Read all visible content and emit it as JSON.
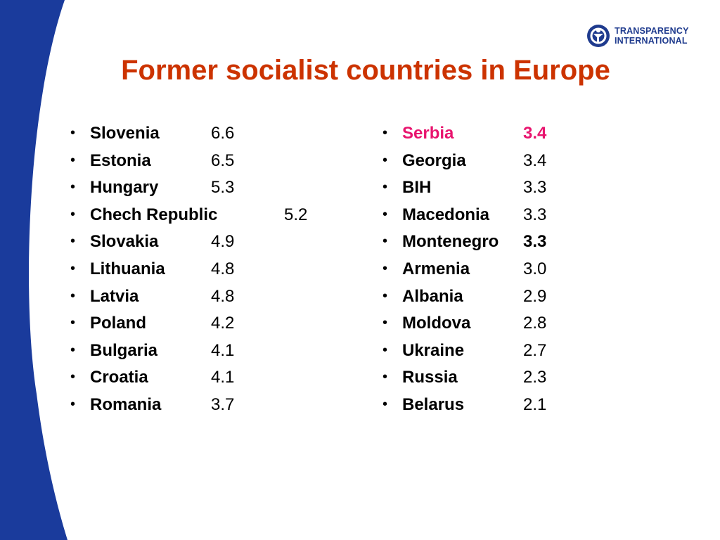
{
  "slide": {
    "title": "Former socialist countries in Europe",
    "bullet": "•",
    "accent_color": "#cc3300",
    "band_color": "#1a3b9c",
    "highlight_color": "#e8146e"
  },
  "logo": {
    "icon": "transparency-international-logo-icon",
    "line1": "TRANSPARENCY",
    "line2": "INTERNATIONAL"
  },
  "left_list": [
    {
      "country": "Slovenia",
      "score": "6.6"
    },
    {
      "country": "Estonia",
      "score": "6.5"
    },
    {
      "country": "Hungary",
      "score": "5.3"
    },
    {
      "country": "Chech Republic",
      "score": "5.2"
    },
    {
      "country": "Slovakia",
      "score": "4.9"
    },
    {
      "country": "Lithuania",
      "score": "4.8"
    },
    {
      "country": "Latvia",
      "score": "4.8"
    },
    {
      "country": "Poland",
      "score": "4.2"
    },
    {
      "country": "Bulgaria",
      "score": "4.1"
    },
    {
      "country": "Croatia",
      "score": "4.1"
    },
    {
      "country": "Romania",
      "score": "3.7"
    }
  ],
  "right_list": [
    {
      "country": "Serbia",
      "score": "3.4"
    },
    {
      "country": "Georgia",
      "score": "3.4"
    },
    {
      "country": "BIH",
      "score": "3.3"
    },
    {
      "country": "Macedonia",
      "score": "3.3"
    },
    {
      "country": "Montenegro",
      "score": "3.3"
    },
    {
      "country": "Armenia",
      "score": "3.0"
    },
    {
      "country": "Albania",
      "score": "2.9"
    },
    {
      "country": "Moldova",
      "score": "2.8"
    },
    {
      "country": "Ukraine",
      "score": "2.7"
    },
    {
      "country": "Russia",
      "score": "2.3"
    },
    {
      "country": "Belarus",
      "score": "2.1"
    }
  ]
}
